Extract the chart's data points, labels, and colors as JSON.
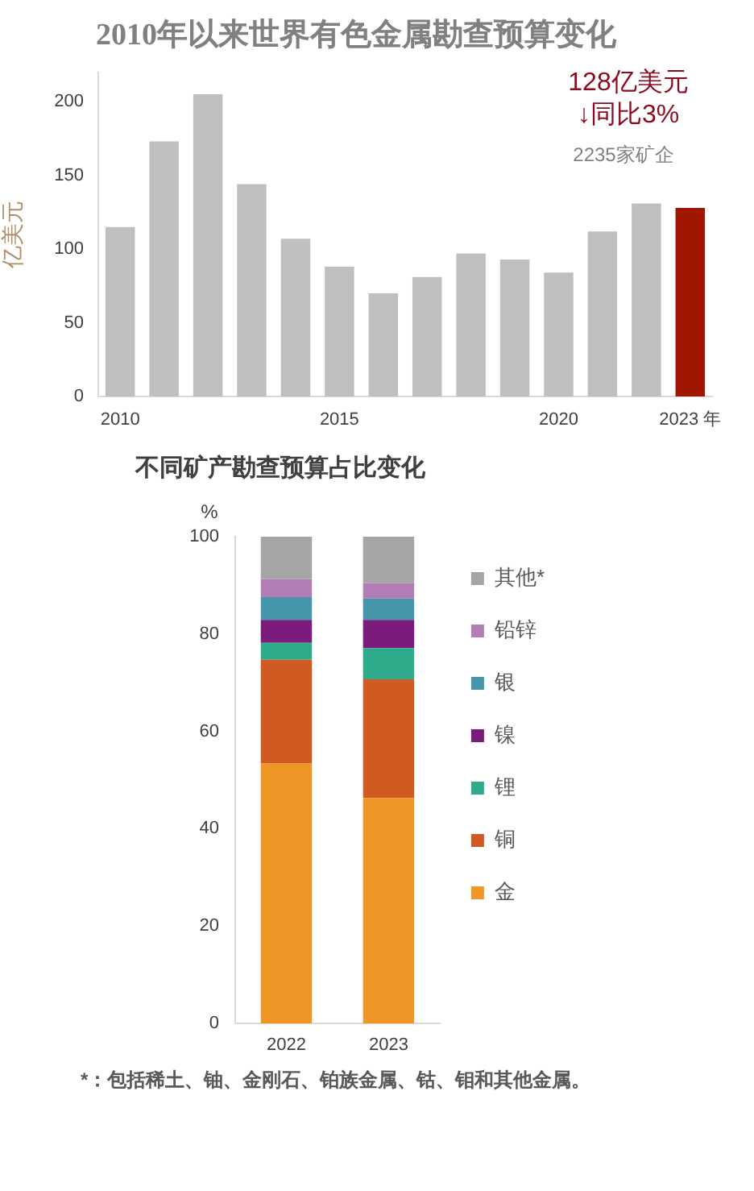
{
  "chart_data": [
    {
      "type": "bar",
      "title": "2010年以来世界有色金属勘查预算变化",
      "ylabel": "亿美元",
      "categories": [
        "2010",
        null,
        null,
        null,
        null,
        "2015",
        null,
        null,
        null,
        null,
        "2020",
        null,
        null,
        "2023 年"
      ],
      "values": [
        115,
        173,
        205,
        144,
        107,
        88,
        70,
        81,
        97,
        93,
        84,
        112,
        131,
        128
      ],
      "colors": [
        "#bfbfbf",
        "#bfbfbf",
        "#bfbfbf",
        "#bfbfbf",
        "#bfbfbf",
        "#bfbfbf",
        "#bfbfbf",
        "#bfbfbf",
        "#bfbfbf",
        "#bfbfbf",
        "#bfbfbf",
        "#bfbfbf",
        "#bfbfbf",
        "#a01600"
      ],
      "ylim": [
        0,
        220
      ],
      "yticks": [
        0,
        50,
        100,
        150,
        200
      ],
      "annotations": [
        "128亿美元",
        "↓同比3%",
        "2235家矿企"
      ]
    },
    {
      "type": "bar",
      "stacked": true,
      "title": "不同矿产勘查预算占比变化",
      "ylabel": "%",
      "categories": [
        "2022",
        "2023"
      ],
      "series": [
        {
          "name": "金",
          "color": "#ef9626",
          "values": [
            53.4,
            46.3
          ]
        },
        {
          "name": "铜",
          "color": "#d05a22",
          "values": [
            21.3,
            24.4
          ]
        },
        {
          "name": "锂",
          "color": "#2eab8a",
          "values": [
            3.5,
            6.4
          ]
        },
        {
          "name": "镍",
          "color": "#7b1c7c",
          "values": [
            4.7,
            5.8
          ]
        },
        {
          "name": "银",
          "color": "#4595ab",
          "values": [
            4.7,
            4.4
          ]
        },
        {
          "name": "铅锌",
          "color": "#b27db7",
          "values": [
            3.7,
            3.2
          ]
        },
        {
          "name": "其他*",
          "color": "#a5a5a5",
          "values": [
            8.7,
            9.5
          ]
        }
      ],
      "ylim": [
        0,
        100
      ],
      "yticks": [
        0,
        20,
        40,
        60,
        80,
        100
      ],
      "legend": "right",
      "annotations": [
        "*：包括稀土、铀、金刚石、铂族金属、钴、钼和其他金属。"
      ]
    }
  ]
}
